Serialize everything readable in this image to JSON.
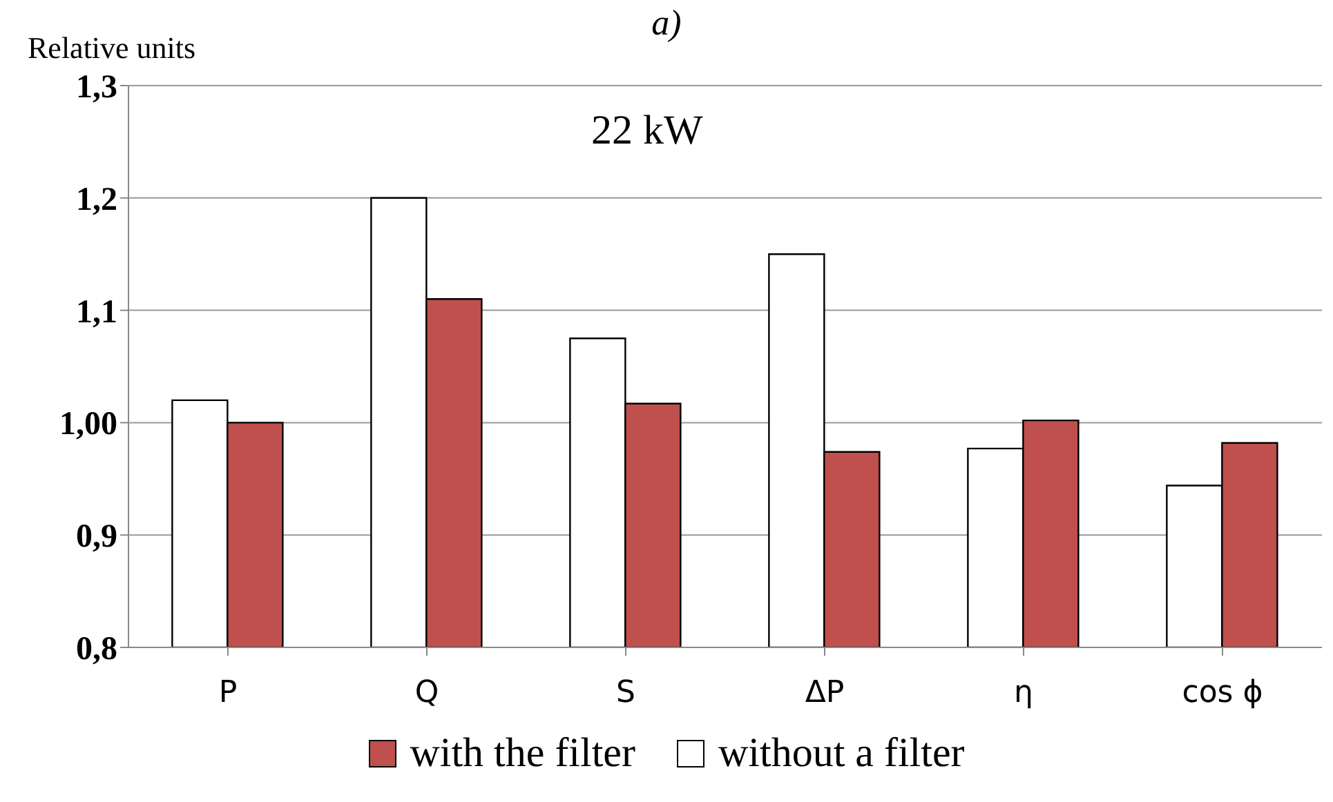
{
  "chart_data": {
    "type": "bar",
    "title": "a)",
    "ylabel": "Relative units",
    "annotations": [
      "22 kW"
    ],
    "categories": [
      "P",
      "Q",
      "S",
      "ΔP",
      "η",
      "cos ϕ"
    ],
    "series": [
      {
        "name": "without a filter",
        "color": "#ffffff",
        "values": [
          1.02,
          1.2,
          1.075,
          1.15,
          0.977,
          0.944
        ]
      },
      {
        "name": "with the filter",
        "color": "#c0504d",
        "values": [
          1.0,
          1.11,
          1.017,
          0.974,
          1.002,
          0.982
        ]
      }
    ],
    "ylim": [
      0.8,
      1.3
    ],
    "yticks": [
      {
        "value": 0.8,
        "label": "0,8"
      },
      {
        "value": 0.9,
        "label": "0,9"
      },
      {
        "value": 1.0,
        "label": "1,00"
      },
      {
        "value": 1.1,
        "label": "1,1"
      },
      {
        "value": 1.2,
        "label": "1,2"
      },
      {
        "value": 1.3,
        "label": "1,3"
      }
    ],
    "grid": "y",
    "legend": "bottom"
  }
}
